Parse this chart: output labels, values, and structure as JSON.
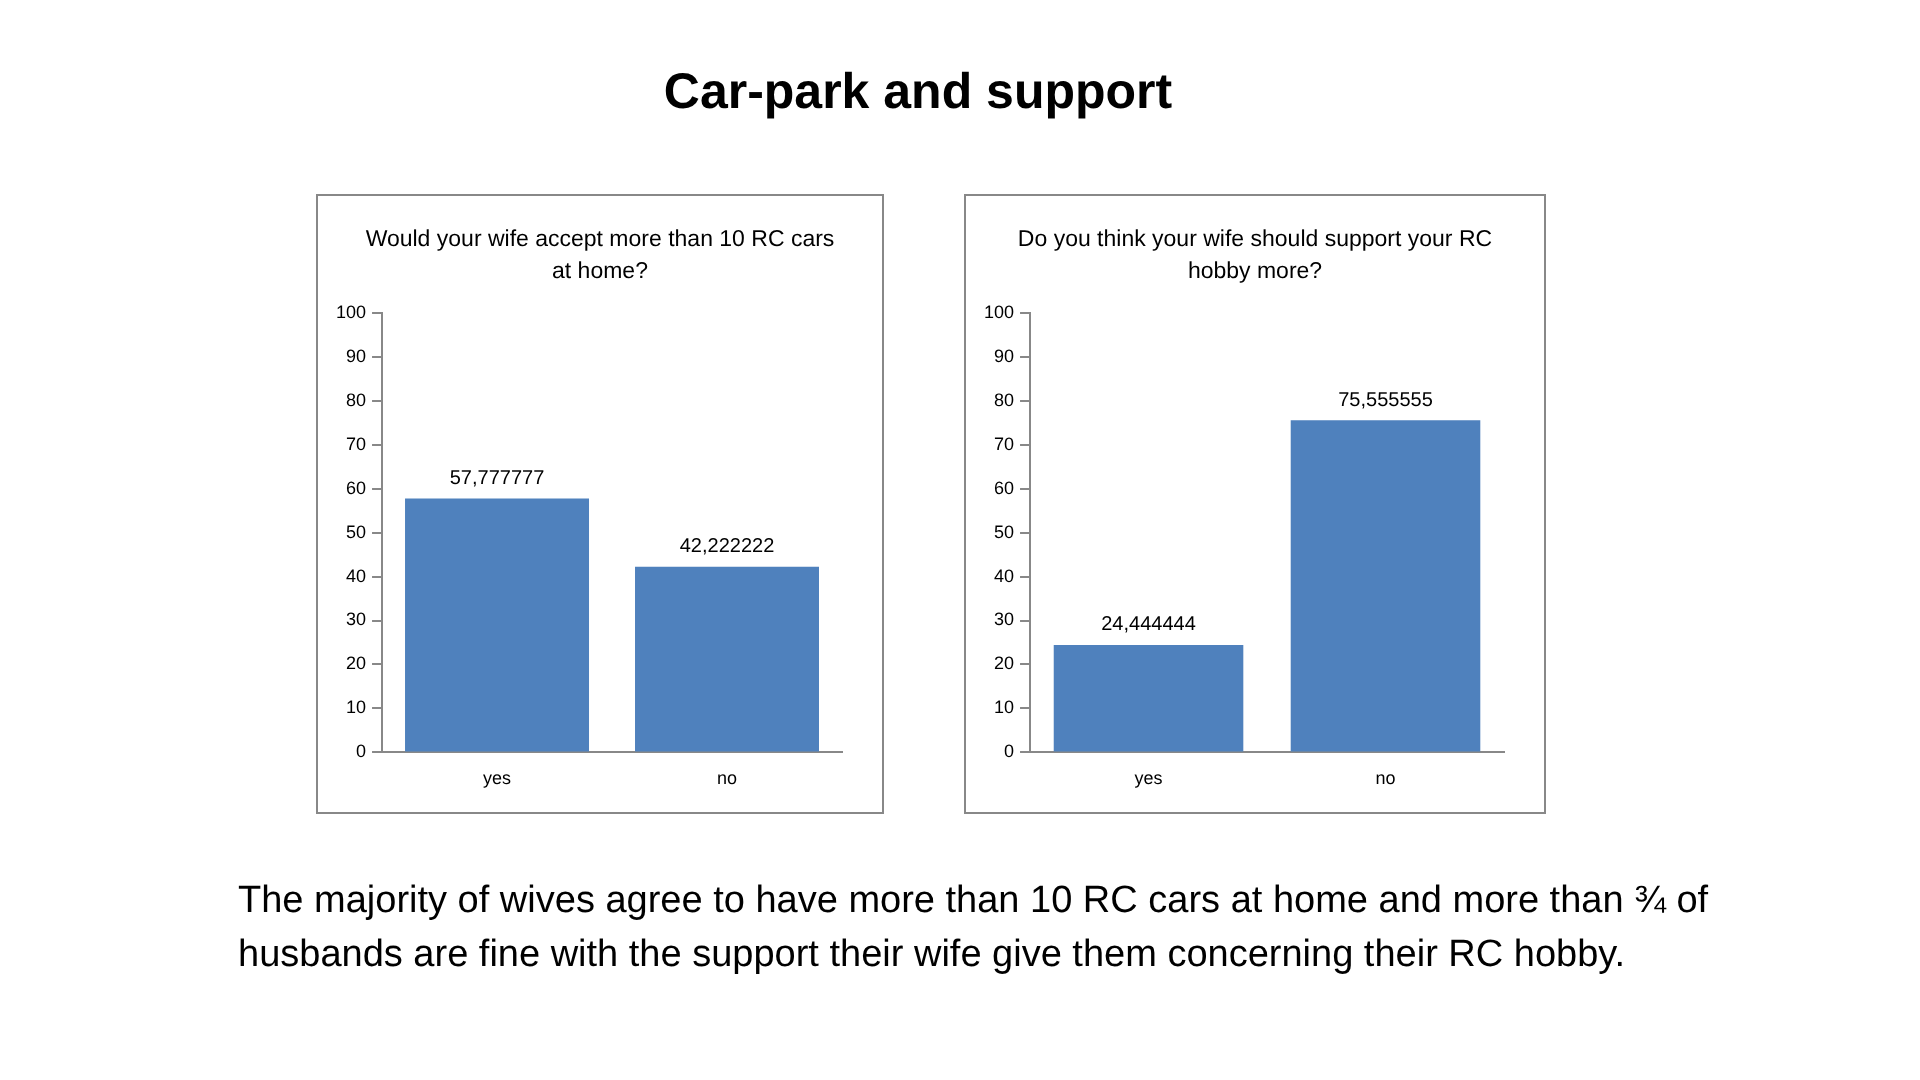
{
  "chart_data": [
    {
      "type": "other",
      "title": "Car-park and support",
      "annotations": [
        "The majority of wives agree to have more than 10 RC cars at home and more than ¾ of husbands are fine with the support their wife give them concerning their RC hobby."
      ]
    },
    {
      "type": "bar",
      "title": "Would your wife accept more than 10 RC cars at home?",
      "categories": [
        "yes",
        "no"
      ],
      "values": [
        57.777777,
        42.222222
      ],
      "value_labels": [
        "57,777777",
        "42,222222"
      ],
      "color": "#4f81bd",
      "ylim": [
        0,
        100
      ],
      "yticks": [
        0,
        10,
        20,
        30,
        40,
        50,
        60,
        70,
        80,
        90,
        100
      ],
      "grid": false,
      "legend": false
    },
    {
      "type": "bar",
      "title": "Do you think your wife should support your RC hobby more?",
      "categories": [
        "yes",
        "no"
      ],
      "values": [
        24.444444,
        75.555555
      ],
      "value_labels": [
        "24,444444",
        "75,555555"
      ],
      "color": "#4f81bd",
      "ylim": [
        0,
        100
      ],
      "yticks": [
        0,
        10,
        20,
        30,
        40,
        50,
        60,
        70,
        80,
        90,
        100
      ],
      "grid": false,
      "legend": false
    }
  ]
}
